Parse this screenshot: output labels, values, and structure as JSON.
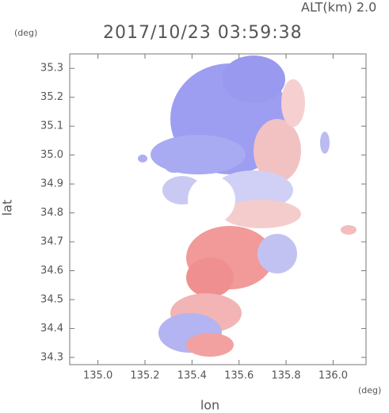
{
  "chart_data": {
    "type": "radar-map",
    "subtitle": "ALT(km)  2.0",
    "title": "2017/10/23 03:59:38",
    "y_unit": "(deg)",
    "x_unit": "(deg)",
    "ylabel": "lat",
    "xlabel": "lon",
    "xlim": [
      134.88,
      136.14
    ],
    "ylim": [
      34.275,
      35.35
    ],
    "xticks": [
      {
        "value": 135.0,
        "label": "135.0"
      },
      135.2,
      135.4,
      135.6,
      135.8,
      {
        "value": 136.0,
        "label": "136.0"
      }
    ],
    "yticks": [
      35.3,
      35.2,
      35.1,
      {
        "value": 35.0,
        "label": "35.0"
      },
      34.9,
      34.8,
      34.7,
      34.6,
      34.5,
      34.4,
      34.3
    ]
  }
}
